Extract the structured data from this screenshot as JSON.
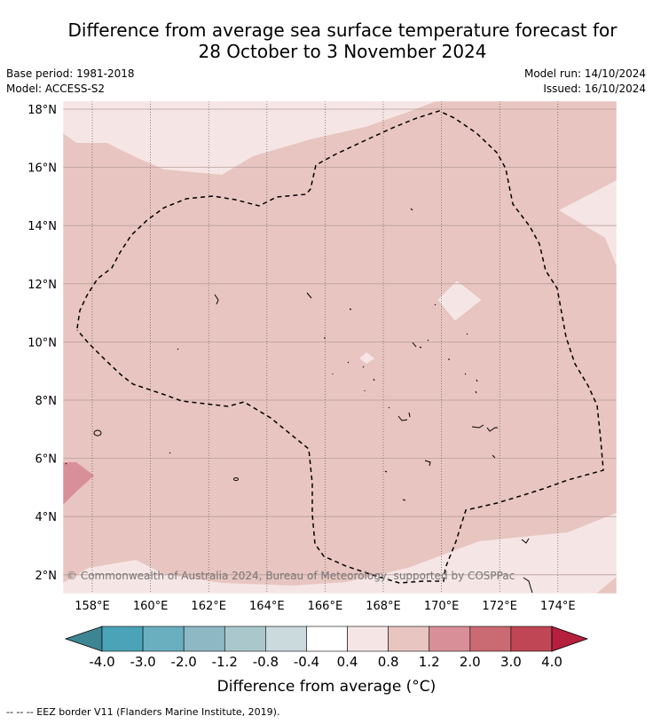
{
  "title_line1": "Difference from average sea surface temperature forecast for",
  "title_line2": "28 October to 3 November 2024",
  "base_period": "Base period: 1981-2018",
  "model": "Model: ACCESS-S2",
  "model_run": "Model run: 14/10/2024",
  "issued": "Issued: 16/10/2024",
  "copyright": "© Commonwealth of Australia 2024, Bureau of Meteorology, supported by COSPPac",
  "lat_labels": [
    "18°N",
    "16°N",
    "14°N",
    "12°N",
    "10°N",
    "8°N",
    "6°N",
    "4°N",
    "2°N"
  ],
  "lon_labels": [
    "158°E",
    "160°E",
    "162°E",
    "164°E",
    "166°E",
    "168°E",
    "170°E",
    "172°E",
    "174°E"
  ],
  "colorbar": {
    "label": "Difference from average (°C)",
    "tick_labels": [
      "-4.0",
      "-3.0",
      "-2.0",
      "-1.2",
      "-0.8",
      "-0.4",
      "0.4",
      "0.8",
      "1.2",
      "2.0",
      "3.0",
      "4.0"
    ],
    "colors": [
      "#4aa3b6",
      "#6aafbf",
      "#8db8c4",
      "#aac8cc",
      "#cbdadd",
      "#ffffff",
      "#f5e6e5",
      "#e8c5c0",
      "#d98f97",
      "#ca6a72",
      "#c04656"
    ],
    "under_color": "#3e8593",
    "over_color": "#b5203c"
  },
  "footer": "--  --  -- EEZ border V11 (Flanders Marine Institute, 2019)."
}
